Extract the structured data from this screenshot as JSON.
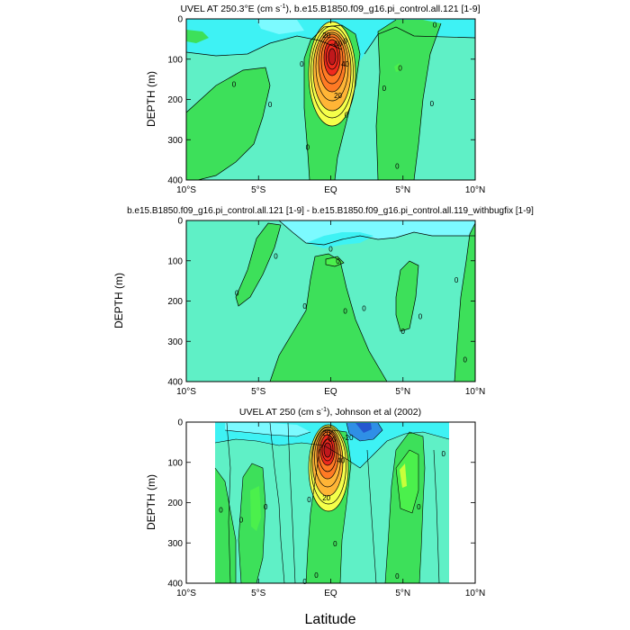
{
  "colors": {
    "background_panel": "#5ff0c6",
    "cyan": "#3ef2f4",
    "light_cyan": "#7cfaff",
    "blue": "#2f8fe6",
    "dark_blue": "#2457cf",
    "green": "#3de05a",
    "bright_green": "#4bf04c",
    "yellow": "#f5ff4a",
    "yellow_green": "#c8ff3a",
    "orange": "#ffb536",
    "dark_orange": "#ff7a24",
    "red": "#ef2a1d",
    "dark_red": "#c0181c"
  },
  "shared": {
    "xlabel": "Latitude",
    "ylabel": "DEPTH (m)",
    "x_ticks": [
      {
        "value": -10,
        "label": "10°S"
      },
      {
        "value": -5,
        "label": "5°S"
      },
      {
        "value": 0,
        "label": "EQ"
      },
      {
        "value": 5,
        "label": "5°N"
      },
      {
        "value": 10,
        "label": "10°N"
      }
    ],
    "y_ticks": [
      {
        "value": 0,
        "label": "0"
      },
      {
        "value": 100,
        "label": "100"
      },
      {
        "value": 200,
        "label": "200"
      },
      {
        "value": 300,
        "label": "300"
      },
      {
        "value": 400,
        "label": "400"
      }
    ]
  },
  "chart_data": [
    {
      "type": "contour",
      "title": "UVEL AT 250.3°E (cm s",
      "title_sup": "-1",
      "title_rest": "), b.e15.B1850.f09_g16.pi_control.all.121 [1-9]",
      "xlim": [
        -10,
        10
      ],
      "ylim": [
        400,
        0
      ],
      "core": {
        "lat": 0,
        "depth": 95,
        "max_value": 100
      },
      "contour_labels": [
        {
          "text": "20",
          "lat": -0.3,
          "depth": 40
        },
        {
          "text": "60",
          "lat": 0.5,
          "depth": 62
        },
        {
          "text": "40",
          "lat": 1.0,
          "depth": 112
        },
        {
          "text": "20",
          "lat": 0.5,
          "depth": 190
        },
        {
          "text": "0",
          "lat": -2.0,
          "depth": 112
        },
        {
          "text": "0",
          "lat": 1.0,
          "depth": 55
        },
        {
          "text": "0",
          "lat": 1.1,
          "depth": 238
        },
        {
          "text": "0",
          "lat": -1.6,
          "depth": 318
        },
        {
          "text": "0",
          "lat": -6.7,
          "depth": 162
        },
        {
          "text": "0",
          "lat": -4.2,
          "depth": 212
        },
        {
          "text": "0",
          "lat": 3.7,
          "depth": 172
        },
        {
          "text": "0",
          "lat": 4.8,
          "depth": 122
        },
        {
          "text": "0",
          "lat": 7.2,
          "depth": 15
        },
        {
          "text": "0",
          "lat": 7.0,
          "depth": 210
        },
        {
          "text": "0",
          "lat": 4.6,
          "depth": 365
        }
      ]
    },
    {
      "type": "contour",
      "title": "b.e15.B1850.f09_g16.pi_control.all.121 [1-9] - b.e15.B1850.f09_g16.pi_control.all.119_withbugfix [1-9]",
      "xlim": [
        -10,
        10
      ],
      "ylim": [
        400,
        0
      ],
      "contour_labels": [
        {
          "text": "0",
          "lat": -3.8,
          "depth": 88
        },
        {
          "text": "0",
          "lat": -6.5,
          "depth": 180
        },
        {
          "text": "0",
          "lat": 0.0,
          "depth": 70
        },
        {
          "text": "0",
          "lat": 0.5,
          "depth": 100
        },
        {
          "text": "0",
          "lat": -1.8,
          "depth": 212
        },
        {
          "text": "0",
          "lat": 1.0,
          "depth": 225
        },
        {
          "text": "0",
          "lat": 2.3,
          "depth": 218
        },
        {
          "text": "0",
          "lat": 5.0,
          "depth": 275
        },
        {
          "text": "0",
          "lat": 6.2,
          "depth": 238
        },
        {
          "text": "0",
          "lat": 8.7,
          "depth": 148
        },
        {
          "text": "0",
          "lat": 9.3,
          "depth": 345
        }
      ]
    },
    {
      "type": "contour",
      "title": "UVEL AT 250 (cm s",
      "title_sup": "-1",
      "title_rest": "), Johnson et al (2002)",
      "xlim": [
        -10,
        10
      ],
      "ylim": [
        400,
        0
      ],
      "data_extent_lat": [
        -8,
        8.2
      ],
      "core": {
        "lat": -0.3,
        "depth": 75,
        "max_value": 100
      },
      "contour_labels": [
        {
          "text": "20",
          "lat": -0.3,
          "depth": 27
        },
        {
          "text": "60",
          "lat": 0.1,
          "depth": 42
        },
        {
          "text": "-20",
          "lat": 1.2,
          "depth": 38
        },
        {
          "text": "40",
          "lat": 0.7,
          "depth": 95
        },
        {
          "text": "20",
          "lat": -0.3,
          "depth": 188
        },
        {
          "text": "0",
          "lat": -7.6,
          "depth": 218
        },
        {
          "text": "0",
          "lat": -6.2,
          "depth": 242
        },
        {
          "text": "0",
          "lat": -4.5,
          "depth": 210
        },
        {
          "text": "0",
          "lat": -1.5,
          "depth": 192
        },
        {
          "text": "0",
          "lat": 0.3,
          "depth": 302
        },
        {
          "text": "0",
          "lat": -1.0,
          "depth": 380
        },
        {
          "text": "0",
          "lat": -1.8,
          "depth": 395
        },
        {
          "text": "0",
          "lat": 4.6,
          "depth": 382
        },
        {
          "text": "0",
          "lat": 6.1,
          "depth": 210
        },
        {
          "text": "0",
          "lat": 7.8,
          "depth": 78
        }
      ]
    }
  ]
}
